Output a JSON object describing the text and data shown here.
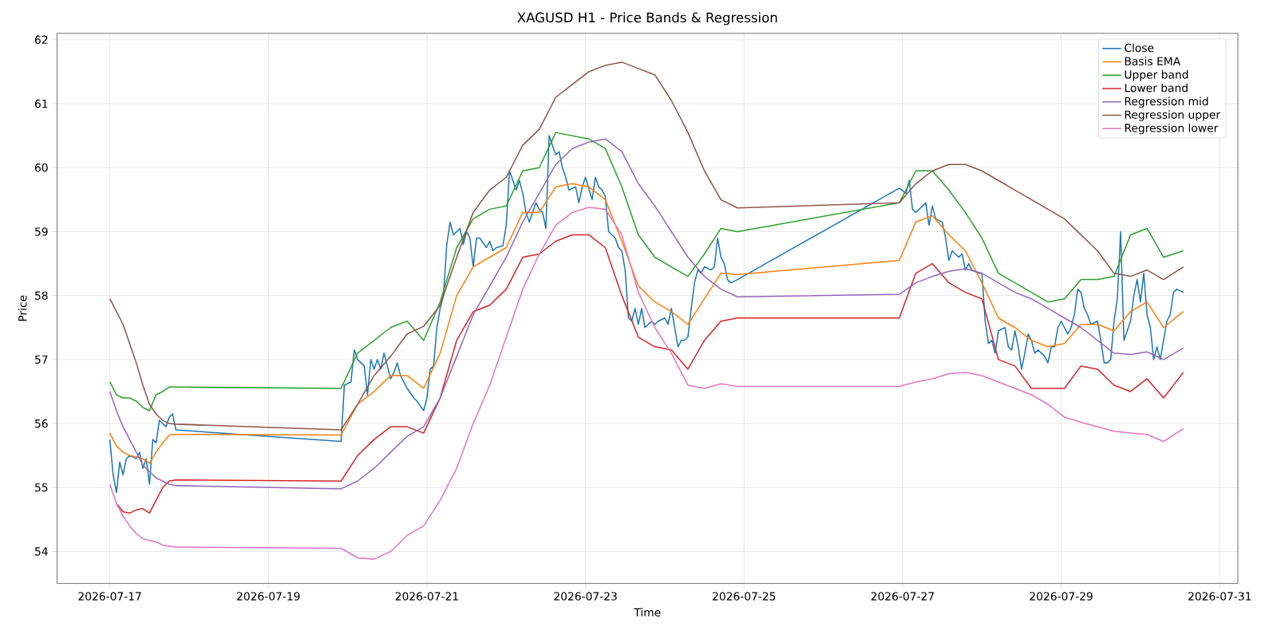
{
  "chart_data": {
    "type": "line",
    "title": "XAGUSD H1 - Price Bands & Regression",
    "xlabel": "Time",
    "ylabel": "Price",
    "xlim": [
      "2026-07-16T08:00",
      "2026-07-31T05:30"
    ],
    "ylim": [
      53.5,
      62.1
    ],
    "xticks": [
      "2026-07-17",
      "2026-07-19",
      "2026-07-21",
      "2026-07-23",
      "2026-07-25",
      "2026-07-27",
      "2026-07-29",
      "2026-07-31"
    ],
    "yticks": [
      54,
      55,
      56,
      57,
      58,
      59,
      60,
      61,
      62
    ],
    "grid": true,
    "legend": "top right",
    "x": [
      "2026-07-17T00:00",
      "2026-07-17T02:00",
      "2026-07-17T04:00",
      "2026-07-17T06:00",
      "2026-07-17T08:00",
      "2026-07-17T10:00",
      "2026-07-17T12:00",
      "2026-07-17T14:00",
      "2026-07-17T16:00",
      "2026-07-17T18:00",
      "2026-07-17T20:00",
      "2026-07-19T22:00",
      "2026-07-20T03:00",
      "2026-07-20T08:00",
      "2026-07-20T13:00",
      "2026-07-20T18:00",
      "2026-07-20T23:00",
      "2026-07-21T04:00",
      "2026-07-21T09:00",
      "2026-07-21T14:00",
      "2026-07-21T19:00",
      "2026-07-22T00:00",
      "2026-07-22T05:00",
      "2026-07-22T10:00",
      "2026-07-22T15:00",
      "2026-07-22T20:00",
      "2026-07-23T01:00",
      "2026-07-23T06:00",
      "2026-07-23T11:00",
      "2026-07-23T16:00",
      "2026-07-23T21:00",
      "2026-07-24T02:00",
      "2026-07-24T07:00",
      "2026-07-24T12:00",
      "2026-07-24T17:00",
      "2026-07-24T22:00",
      "2026-07-26T23:00",
      "2026-07-27T04:00",
      "2026-07-27T09:00",
      "2026-07-27T14:00",
      "2026-07-27T19:00",
      "2026-07-28T00:00",
      "2026-07-28T05:00",
      "2026-07-28T10:00",
      "2026-07-28T15:00",
      "2026-07-28T20:00",
      "2026-07-29T01:00",
      "2026-07-29T06:00",
      "2026-07-29T11:00",
      "2026-07-29T16:00",
      "2026-07-29T21:00",
      "2026-07-30T02:00",
      "2026-07-30T07:00",
      "2026-07-30T13:00"
    ],
    "series": [
      {
        "name": "Close",
        "color": "#1f77b4",
        "x": [
          "2026-07-17T00:00",
          "2026-07-17T01:00",
          "2026-07-17T02:00",
          "2026-07-17T03:00",
          "2026-07-17T04:00",
          "2026-07-17T05:00",
          "2026-07-17T06:00",
          "2026-07-17T08:00",
          "2026-07-17T09:00",
          "2026-07-17T10:00",
          "2026-07-17T11:00",
          "2026-07-17T12:00",
          "2026-07-17T13:00",
          "2026-07-17T14:00",
          "2026-07-17T15:00",
          "2026-07-17T17:00",
          "2026-07-17T18:00",
          "2026-07-17T19:00",
          "2026-07-17T20:00",
          "2026-07-19T22:00",
          "2026-07-19T23:00",
          "2026-07-20T01:00",
          "2026-07-20T02:00",
          "2026-07-20T03:00",
          "2026-07-20T05:00",
          "2026-07-20T06:00",
          "2026-07-20T07:00",
          "2026-07-20T08:00",
          "2026-07-20T09:00",
          "2026-07-20T10:00",
          "2026-07-20T11:00",
          "2026-07-20T13:00",
          "2026-07-20T14:00",
          "2026-07-20T15:00",
          "2026-07-20T16:00",
          "2026-07-20T18:00",
          "2026-07-20T20:00",
          "2026-07-20T21:00",
          "2026-07-20T23:00",
          "2026-07-21T00:00",
          "2026-07-21T01:00",
          "2026-07-21T02:00",
          "2026-07-21T03:00",
          "2026-07-21T04:00",
          "2026-07-21T05:00",
          "2026-07-21T06:00",
          "2026-07-21T07:00",
          "2026-07-21T08:00",
          "2026-07-21T10:00",
          "2026-07-21T11:00",
          "2026-07-21T12:00",
          "2026-07-21T13:00",
          "2026-07-21T14:00",
          "2026-07-21T15:00",
          "2026-07-21T16:00",
          "2026-07-21T18:00",
          "2026-07-21T19:00",
          "2026-07-21T20:00",
          "2026-07-21T21:00",
          "2026-07-21T23:00",
          "2026-07-22T00:00",
          "2026-07-22T01:00",
          "2026-07-22T03:00",
          "2026-07-22T04:00",
          "2026-07-22T05:00",
          "2026-07-22T06:00",
          "2026-07-22T07:00",
          "2026-07-22T09:00",
          "2026-07-22T10:00",
          "2026-07-22T11:00",
          "2026-07-22T12:00",
          "2026-07-22T13:00",
          "2026-07-22T15:00",
          "2026-07-22T16:00",
          "2026-07-22T17:00",
          "2026-07-22T18:00",
          "2026-07-22T19:00",
          "2026-07-22T21:00",
          "2026-07-22T22:00",
          "2026-07-22T23:00",
          "2026-07-23T00:00",
          "2026-07-23T02:00",
          "2026-07-23T03:00",
          "2026-07-23T04:00",
          "2026-07-23T05:00",
          "2026-07-23T06:00",
          "2026-07-23T07:00",
          "2026-07-23T09:00",
          "2026-07-23T10:00",
          "2026-07-23T11:00",
          "2026-07-23T12:00",
          "2026-07-23T13:00",
          "2026-07-23T14:00",
          "2026-07-23T15:00",
          "2026-07-23T16:00",
          "2026-07-23T17:00",
          "2026-07-23T18:00",
          "2026-07-23T20:00",
          "2026-07-23T21:00",
          "2026-07-23T22:00",
          "2026-07-24T00:00",
          "2026-07-24T01:00",
          "2026-07-24T02:00",
          "2026-07-24T03:00",
          "2026-07-24T04:00",
          "2026-07-24T05:00",
          "2026-07-24T06:00",
          "2026-07-24T07:00",
          "2026-07-24T08:00",
          "2026-07-24T09:00",
          "2026-07-24T10:00",
          "2026-07-24T11:00",
          "2026-07-24T12:00",
          "2026-07-24T14:00",
          "2026-07-24T15:00",
          "2026-07-24T16:00",
          "2026-07-24T17:00",
          "2026-07-24T18:00",
          "2026-07-24T19:00",
          "2026-07-24T20:00",
          "2026-07-24T22:00",
          "2026-07-26T23:00",
          "2026-07-27T01:00",
          "2026-07-27T02:00",
          "2026-07-27T03:00",
          "2026-07-27T04:00",
          "2026-07-27T06:00",
          "2026-07-27T07:00",
          "2026-07-27T08:00",
          "2026-07-27T09:00",
          "2026-07-27T10:00",
          "2026-07-27T12:00",
          "2026-07-27T13:00",
          "2026-07-27T14:00",
          "2026-07-27T15:00",
          "2026-07-27T17:00",
          "2026-07-27T18:00",
          "2026-07-27T19:00",
          "2026-07-27T20:00",
          "2026-07-27T21:00",
          "2026-07-27T23:00",
          "2026-07-28T00:00",
          "2026-07-28T01:00",
          "2026-07-28T02:00",
          "2026-07-28T03:00",
          "2026-07-28T04:00",
          "2026-07-28T05:00",
          "2026-07-28T07:00",
          "2026-07-28T08:00",
          "2026-07-28T09:00",
          "2026-07-28T10:00",
          "2026-07-28T11:00",
          "2026-07-28T12:00",
          "2026-07-28T13:00",
          "2026-07-28T14:00",
          "2026-07-28T15:00",
          "2026-07-28T16:00",
          "2026-07-28T17:00",
          "2026-07-28T19:00",
          "2026-07-28T20:00",
          "2026-07-28T21:00",
          "2026-07-28T22:00",
          "2026-07-28T23:00",
          "2026-07-29T00:00",
          "2026-07-29T02:00",
          "2026-07-29T03:00",
          "2026-07-29T04:00",
          "2026-07-29T05:00",
          "2026-07-29T06:00",
          "2026-07-29T07:00",
          "2026-07-29T08:00",
          "2026-07-29T09:00",
          "2026-07-29T11:00",
          "2026-07-29T12:00",
          "2026-07-29T13:00",
          "2026-07-29T14:00",
          "2026-07-29T15:00",
          "2026-07-29T16:00",
          "2026-07-29T17:00",
          "2026-07-29T18:00",
          "2026-07-29T19:00",
          "2026-07-29T21:00",
          "2026-07-29T22:00",
          "2026-07-29T23:00",
          "2026-07-30T00:00",
          "2026-07-30T01:00",
          "2026-07-30T02:00",
          "2026-07-30T03:00",
          "2026-07-30T04:00",
          "2026-07-30T05:00",
          "2026-07-30T06:00",
          "2026-07-30T08:00",
          "2026-07-30T09:00",
          "2026-07-30T10:00",
          "2026-07-30T11:00",
          "2026-07-30T13:00"
        ],
        "values": [
          55.75,
          55.2,
          54.92,
          55.4,
          55.2,
          55.45,
          55.5,
          55.45,
          55.55,
          55.3,
          55.45,
          55.05,
          55.75,
          55.7,
          56.05,
          55.95,
          56.1,
          56.15,
          55.9,
          55.72,
          56.6,
          56.65,
          57.15,
          57.0,
          56.9,
          56.45,
          57.0,
          56.85,
          57.0,
          56.85,
          57.1,
          56.7,
          56.8,
          56.95,
          56.75,
          56.55,
          56.4,
          56.35,
          56.2,
          56.4,
          56.85,
          56.9,
          57.5,
          57.8,
          58.0,
          58.8,
          59.15,
          58.95,
          59.05,
          58.8,
          59.0,
          58.9,
          58.45,
          58.9,
          58.9,
          58.75,
          58.85,
          58.7,
          58.75,
          58.78,
          59.1,
          59.95,
          59.65,
          59.8,
          59.6,
          59.3,
          59.15,
          59.45,
          59.35,
          59.3,
          59.05,
          60.5,
          60.2,
          60.25,
          60.0,
          59.85,
          59.65,
          59.7,
          59.45,
          59.7,
          59.85,
          59.5,
          59.85,
          59.7,
          59.65,
          59.55,
          59.0,
          58.9,
          58.75,
          58.7,
          58.4,
          57.65,
          57.6,
          57.8,
          57.55,
          57.8,
          57.5,
          57.6,
          57.55,
          57.6,
          57.65,
          57.55,
          57.8,
          57.5,
          57.2,
          57.3,
          57.3,
          57.35,
          57.8,
          58.2,
          58.4,
          58.35,
          58.45,
          58.4,
          58.45,
          58.9,
          58.6,
          58.5,
          58.25,
          58.2,
          58.25,
          59.68,
          59.6,
          59.8,
          59.35,
          59.3,
          59.4,
          59.45,
          59.1,
          59.4,
          59.2,
          59.15,
          58.9,
          58.55,
          58.7,
          58.6,
          58.65,
          58.4,
          58.5,
          58.4,
          58.35,
          58.35,
          57.6,
          57.25,
          57.3,
          57.1,
          57.45,
          57.5,
          57.2,
          57.15,
          57.45,
          57.2,
          56.85,
          57.1,
          57.4,
          57.3,
          57.1,
          57.15,
          57.05,
          56.95,
          57.2,
          57.2,
          57.5,
          57.6,
          57.4,
          57.5,
          57.7,
          58.1,
          58.05,
          57.8,
          57.7,
          57.55,
          57.6,
          57.3,
          56.95,
          56.95,
          57.0,
          57.6,
          57.95,
          59.0,
          57.3,
          57.6,
          58.0,
          58.25,
          57.9,
          58.35,
          57.7,
          57.5,
          57.0,
          57.2,
          57.0,
          57.6,
          57.7,
          58.05,
          58.1,
          58.05
        ]
      },
      {
        "name": "Basis EMA",
        "color": "#ff7f0e",
        "values": [
          55.85,
          55.65,
          55.55,
          55.5,
          55.48,
          55.45,
          55.38,
          55.55,
          55.7,
          55.82,
          55.83,
          55.82,
          56.3,
          56.5,
          56.75,
          56.75,
          56.55,
          57.1,
          58.0,
          58.45,
          58.6,
          58.75,
          59.3,
          59.3,
          59.7,
          59.75,
          59.7,
          59.5,
          58.85,
          58.15,
          57.9,
          57.75,
          57.55,
          57.95,
          58.35,
          58.33,
          58.55,
          59.15,
          59.25,
          58.95,
          58.7,
          58.2,
          57.65,
          57.5,
          57.3,
          57.2,
          57.25,
          57.55,
          57.55,
          57.45,
          57.75,
          57.9,
          57.5,
          57.75
        ]
      },
      {
        "name": "Upper band",
        "color": "#2ca02c",
        "values": [
          56.65,
          56.45,
          56.4,
          56.4,
          56.35,
          56.25,
          56.2,
          56.45,
          56.5,
          56.57,
          56.57,
          56.55,
          57.1,
          57.3,
          57.5,
          57.6,
          57.3,
          57.9,
          58.75,
          59.2,
          59.35,
          59.4,
          59.95,
          60.0,
          60.55,
          60.5,
          60.45,
          60.3,
          59.7,
          58.95,
          58.6,
          58.45,
          58.3,
          58.65,
          59.05,
          59.0,
          59.45,
          59.95,
          59.95,
          59.65,
          59.3,
          58.9,
          58.35,
          58.2,
          58.05,
          57.9,
          57.95,
          58.25,
          58.25,
          58.3,
          58.95,
          59.05,
          58.6,
          58.7
        ]
      },
      {
        "name": "Lower band",
        "color": "#d62728",
        "values": [
          null,
          54.75,
          54.62,
          54.6,
          54.65,
          54.67,
          54.6,
          54.8,
          55.0,
          55.1,
          55.12,
          55.1,
          55.5,
          55.75,
          55.95,
          55.95,
          55.85,
          56.4,
          57.3,
          57.75,
          57.85,
          58.1,
          58.6,
          58.65,
          58.85,
          58.95,
          58.95,
          58.75,
          58.0,
          57.35,
          57.2,
          57.15,
          56.85,
          57.3,
          57.6,
          57.65,
          57.65,
          58.35,
          58.5,
          58.2,
          58.05,
          57.95,
          57.0,
          56.9,
          56.55,
          56.55,
          56.55,
          56.9,
          56.85,
          56.6,
          56.5,
          56.7,
          56.4,
          56.8
        ]
      },
      {
        "name": "Regression mid",
        "color": "#9467bd",
        "values": [
          56.5,
          56.2,
          55.95,
          55.75,
          55.55,
          55.35,
          55.25,
          55.15,
          55.1,
          55.05,
          55.03,
          54.98,
          55.1,
          55.3,
          55.55,
          55.8,
          55.95,
          56.4,
          57.05,
          57.7,
          58.15,
          58.6,
          59.15,
          59.6,
          60.05,
          60.3,
          60.4,
          60.45,
          60.25,
          59.75,
          59.4,
          59.0,
          58.6,
          58.3,
          58.1,
          57.98,
          58.02,
          58.2,
          58.3,
          58.38,
          58.42,
          58.35,
          58.2,
          58.05,
          57.95,
          57.8,
          57.65,
          57.5,
          57.3,
          57.1,
          57.08,
          57.12,
          57.0,
          57.18
        ]
      },
      {
        "name": "Regression upper",
        "color": "#8c564b",
        "values": [
          57.95,
          57.75,
          57.55,
          57.25,
          56.95,
          56.6,
          56.3,
          56.15,
          56.05,
          56.0,
          55.99,
          55.9,
          56.3,
          56.75,
          57.05,
          57.4,
          57.52,
          57.85,
          58.6,
          59.3,
          59.65,
          59.85,
          60.35,
          60.6,
          61.1,
          61.3,
          61.5,
          61.6,
          61.65,
          61.55,
          61.45,
          61.05,
          60.55,
          59.95,
          59.5,
          59.37,
          59.45,
          59.75,
          59.95,
          60.05,
          60.05,
          59.95,
          59.8,
          59.65,
          59.5,
          59.35,
          59.2,
          58.95,
          58.7,
          58.35,
          58.3,
          58.4,
          58.25,
          58.45
        ]
      },
      {
        "name": "Regression lower",
        "color": "#e377c2",
        "values": [
          55.05,
          54.75,
          54.55,
          54.4,
          54.28,
          54.2,
          54.17,
          54.15,
          54.1,
          54.08,
          54.07,
          54.05,
          53.9,
          53.88,
          54.0,
          54.25,
          54.4,
          54.8,
          55.3,
          56.0,
          56.6,
          57.35,
          58.1,
          58.65,
          59.1,
          59.3,
          59.38,
          59.35,
          58.95,
          58.05,
          57.5,
          57.1,
          56.6,
          56.55,
          56.62,
          56.58,
          56.58,
          56.65,
          56.7,
          56.78,
          56.8,
          56.75,
          56.65,
          56.55,
          56.45,
          56.3,
          56.1,
          56.02,
          55.95,
          55.88,
          55.85,
          55.83,
          55.72,
          55.92
        ]
      }
    ]
  }
}
